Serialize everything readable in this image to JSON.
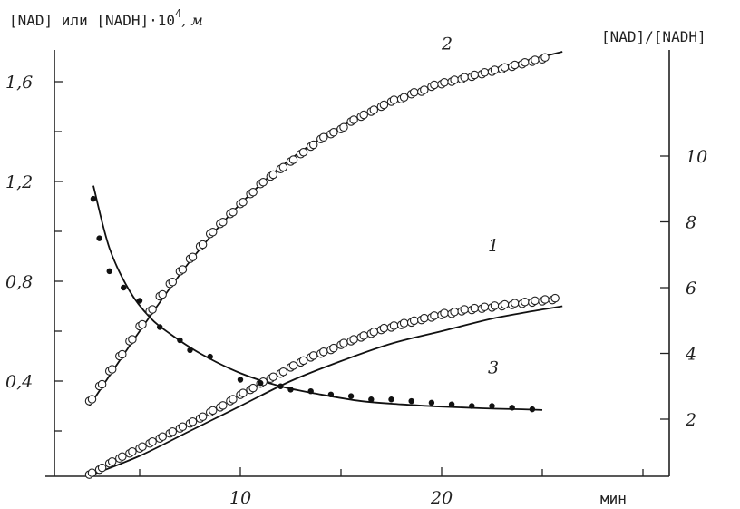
{
  "chart_data": {
    "type": "scatter",
    "ylabel_left": "[NAD] или [NADH]·10",
    "ylabel_left_exp": "4",
    "ylabel_left_unit": ", м",
    "ylabel_right": "[NAD]/[NADH]",
    "xlabel": "мин",
    "xlim": [
      0,
      30
    ],
    "ylim_left": [
      0,
      1.7
    ],
    "ylim_right": [
      0,
      13
    ],
    "x_ticks": [
      10,
      20
    ],
    "x_tick_labels": [
      "10",
      "20"
    ],
    "y_left_ticks": [
      0.4,
      0.8,
      1.2,
      1.6
    ],
    "y_left_tick_labels": [
      "0,4",
      "0,8",
      "1,2",
      "1,6"
    ],
    "y_right_ticks": [
      2,
      4,
      6,
      8,
      10
    ],
    "y_right_tick_labels": [
      "2",
      "4",
      "6",
      "8",
      "10"
    ],
    "series": [
      {
        "label": "1",
        "axis": "left",
        "marker": "open-circle",
        "x": [
          2.5,
          3,
          3.5,
          4,
          4.5,
          5,
          5.5,
          6,
          6.5,
          7,
          7.5,
          8,
          8.5,
          9,
          9.5,
          10,
          10.5,
          11,
          11.5,
          12,
          12.5,
          13,
          13.5,
          14,
          14.5,
          15,
          15.5,
          16,
          16.5,
          17,
          17.5,
          18,
          18.5,
          19,
          19.5,
          20,
          20.5,
          21,
          21.5,
          22,
          22.5,
          23,
          23.5,
          24,
          24.5,
          25,
          25.5
        ],
        "y": [
          0.025,
          0.045,
          0.07,
          0.09,
          0.11,
          0.13,
          0.15,
          0.17,
          0.19,
          0.21,
          0.23,
          0.25,
          0.275,
          0.295,
          0.32,
          0.345,
          0.365,
          0.39,
          0.41,
          0.43,
          0.455,
          0.475,
          0.495,
          0.51,
          0.525,
          0.545,
          0.56,
          0.575,
          0.59,
          0.605,
          0.615,
          0.625,
          0.635,
          0.645,
          0.655,
          0.665,
          0.67,
          0.68,
          0.685,
          0.69,
          0.695,
          0.7,
          0.705,
          0.71,
          0.715,
          0.72,
          0.725
        ],
        "curve_y": [
          0.02,
          0.1,
          0.2,
          0.3,
          0.4,
          0.48,
          0.55,
          0.6,
          0.65,
          0.68,
          0.7
        ],
        "curve_x": [
          2.5,
          5,
          7.5,
          10,
          12.5,
          15,
          17.5,
          20,
          22.5,
          24.5,
          26
        ]
      },
      {
        "label": "2",
        "axis": "left",
        "marker": "open-circle",
        "x": [
          2.5,
          3,
          3.5,
          4,
          4.5,
          5,
          5.5,
          6,
          6.5,
          7,
          7.5,
          8,
          8.5,
          9,
          9.5,
          10,
          10.5,
          11,
          11.5,
          12,
          12.5,
          13,
          13.5,
          14,
          14.5,
          15,
          15.5,
          16,
          16.5,
          17,
          17.5,
          18,
          18.5,
          19,
          19.5,
          20,
          20.5,
          21,
          21.5,
          22,
          22.5,
          23,
          23.5,
          24,
          24.5,
          25
        ],
        "y": [
          0.32,
          0.38,
          0.44,
          0.5,
          0.56,
          0.62,
          0.68,
          0.74,
          0.79,
          0.84,
          0.89,
          0.94,
          0.99,
          1.03,
          1.07,
          1.11,
          1.15,
          1.19,
          1.22,
          1.25,
          1.28,
          1.31,
          1.34,
          1.37,
          1.39,
          1.41,
          1.44,
          1.46,
          1.48,
          1.5,
          1.52,
          1.53,
          1.55,
          1.56,
          1.58,
          1.59,
          1.6,
          1.61,
          1.62,
          1.63,
          1.64,
          1.65,
          1.66,
          1.67,
          1.68,
          1.69
        ],
        "curve_x": [
          2.5,
          5,
          7.5,
          10,
          12.5,
          15,
          17.5,
          20,
          22.5,
          25,
          26
        ],
        "curve_y": [
          0.3,
          0.6,
          0.88,
          1.11,
          1.29,
          1.42,
          1.52,
          1.59,
          1.65,
          1.7,
          1.72
        ]
      },
      {
        "label": "3",
        "axis": "right",
        "marker": "filled-circle",
        "x": [
          2.7,
          3,
          3.5,
          4.2,
          5,
          6,
          7,
          7.5,
          8.5,
          10,
          11,
          12,
          12.5,
          13.5,
          14.5,
          15.5,
          16.5,
          17.5,
          18.5,
          19.5,
          20.5,
          21.5,
          22.5,
          23.5,
          24.5
        ],
        "y": [
          8.7,
          7.5,
          6.5,
          6,
          5.6,
          4.8,
          4.4,
          4.1,
          3.9,
          3.2,
          3.1,
          3,
          2.9,
          2.85,
          2.75,
          2.7,
          2.6,
          2.6,
          2.55,
          2.5,
          2.45,
          2.4,
          2.4,
          2.35,
          2.3
        ],
        "curve_x": [
          2.7,
          3.5,
          4.5,
          5.5,
          6.5,
          8,
          10,
          12,
          14,
          16,
          18,
          20,
          22,
          24,
          25
        ],
        "curve_y": [
          9.1,
          7.2,
          5.9,
          5.1,
          4.6,
          4.0,
          3.4,
          3.0,
          2.75,
          2.55,
          2.45,
          2.38,
          2.33,
          2.3,
          2.28
        ]
      }
    ]
  }
}
